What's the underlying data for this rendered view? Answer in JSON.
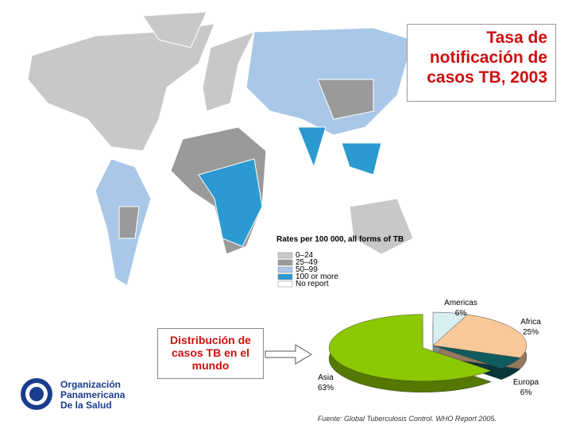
{
  "title": "Tasa de notificación de casos TB, 2003",
  "map_legend": {
    "title": "Rates per 100 000, all forms of TB",
    "items": [
      {
        "label": "0–24",
        "color": "#c8c8c8"
      },
      {
        "label": "25–49",
        "color": "#9a9a9a"
      },
      {
        "label": "50–99",
        "color": "#a9c8e8"
      },
      {
        "label": "100 or more",
        "color": "#2a9ad0"
      },
      {
        "label": "No report",
        "color": "#ffffff"
      }
    ]
  },
  "callout": "Distribución de casos TB en el mundo",
  "organization": [
    "Organización",
    "Panamericana",
    "De la Salud"
  ],
  "source": "Fuente: Global Tuberculosis Control. WHO Report 2005.",
  "chart_data": {
    "type": "pie",
    "categories": [
      "Americas",
      "Africa",
      "Europa",
      "Asia"
    ],
    "values": [
      6,
      25,
      6,
      63
    ],
    "value_labels": [
      "6%",
      "25%",
      "6%",
      "63%"
    ],
    "colors": [
      "#d8eef0",
      "#f8c898",
      "#0e5c60",
      "#8cc800"
    ],
    "exploded": "Asia"
  }
}
